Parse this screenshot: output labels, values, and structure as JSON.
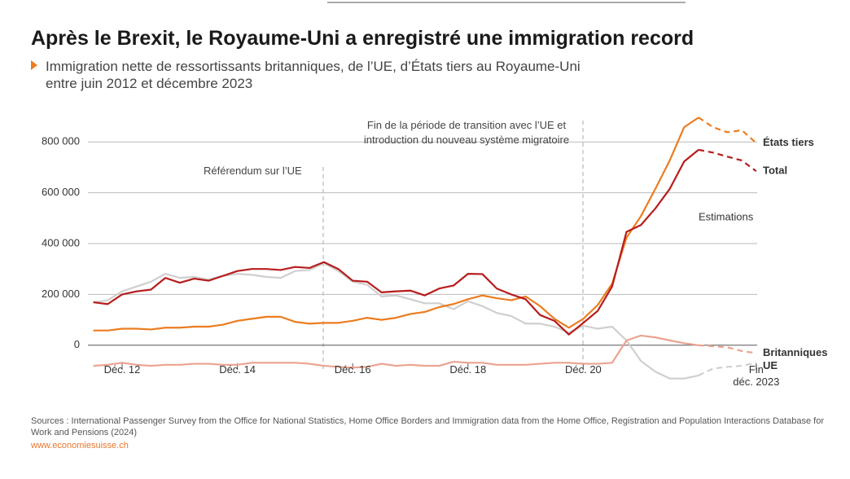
{
  "chart_data": {
    "type": "line",
    "title": "Après le Brexit, le Royaume-Uni a enregistré une immigration record",
    "subtitle": "Immigration nette de ressortissants britanniques, de l’UE, d’États tiers au Royaume-Uni entre juin 2012 et décembre 2023",
    "annotations": [
      "Référendum sur l’UE",
      "Fin de la période de transition avec l’UE et introduction du nouveau système migratoire",
      "Estimations"
    ],
    "source": "Sources : International Passenger Survey from the Office for National Statistics, Home Office Borders and Immigration data from the Home Office, Registration and Population Interactions Database for Work and Pensions (2024)",
    "website": "www.economiesuisse.ch",
    "categories": [
      null,
      null,
      "Déc. 12",
      null,
      null,
      null,
      null,
      null,
      null,
      null,
      "Déc. 14",
      null,
      null,
      null,
      null,
      null,
      null,
      null,
      "Déc. 16",
      null,
      null,
      null,
      null,
      null,
      null,
      null,
      "Déc. 18",
      null,
      null,
      null,
      null,
      null,
      null,
      null,
      "Déc. 20",
      null,
      null,
      null,
      null,
      null,
      null,
      null,
      null,
      null,
      null,
      null,
      "Fin\ndéc. 2023"
    ],
    "dashed_from_index": 42,
    "ylim": [
      -100000,
      900000
    ],
    "yticks": [
      0,
      {
        "value": 200000,
        "label": "200 000"
      },
      {
        "value": 400000,
        "label": "400 000"
      },
      {
        "value": 600000,
        "label": "600 000"
      },
      {
        "value": 800000,
        "label": "800 000"
      }
    ],
    "grid": true,
    "series": [
      {
        "name": "UE",
        "color": "#cfcfcf",
        "values": [
          169000,
          177000,
          212000,
          231000,
          250000,
          281000,
          265000,
          269000,
          258000,
          273000,
          281000,
          277000,
          269000,
          265000,
          292000,
          296000,
          323000,
          292000,
          250000,
          238000,
          192000,
          196000,
          181000,
          165000,
          165000,
          142000,
          173000,
          154000,
          127000,
          115000,
          85000,
          85000,
          73000,
          50000,
          77000,
          65000,
          73000,
          19000,
          -62000,
          -104000,
          -131000,
          -131000,
          -119000,
          -92000,
          -85000,
          -81000,
          -69000
        ]
      },
      {
        "name": "Britanniques",
        "color": "#eba38f",
        "values": [
          -81000,
          -77000,
          -69000,
          -77000,
          -81000,
          -77000,
          -77000,
          -73000,
          -73000,
          -77000,
          -77000,
          -69000,
          -69000,
          -69000,
          -69000,
          -73000,
          -81000,
          -85000,
          -88000,
          -85000,
          -73000,
          -81000,
          -77000,
          -81000,
          -81000,
          -65000,
          -69000,
          -69000,
          -77000,
          -77000,
          -77000,
          -73000,
          -69000,
          -69000,
          -73000,
          -73000,
          -69000,
          19000,
          38000,
          31000,
          19000,
          8000,
          0,
          -4000,
          -8000,
          -23000,
          -31000
        ]
      },
      {
        "name": "États tiers",
        "color": "#ec7c1f",
        "values": [
          58000,
          58000,
          65000,
          65000,
          62000,
          69000,
          69000,
          73000,
          73000,
          81000,
          96000,
          104000,
          112000,
          112000,
          92000,
          85000,
          88000,
          88000,
          96000,
          108000,
          100000,
          108000,
          123000,
          131000,
          150000,
          162000,
          181000,
          196000,
          185000,
          177000,
          192000,
          154000,
          104000,
          69000,
          104000,
          158000,
          242000,
          423000,
          508000,
          615000,
          727000,
          858000,
          896000,
          858000,
          838000,
          846000,
          796000
        ]
      },
      {
        "name": "Total",
        "color": "#b71c1c",
        "values": [
          169000,
          162000,
          200000,
          212000,
          219000,
          265000,
          246000,
          262000,
          254000,
          273000,
          292000,
          300000,
          300000,
          296000,
          308000,
          304000,
          327000,
          300000,
          254000,
          250000,
          208000,
          212000,
          215000,
          196000,
          223000,
          235000,
          281000,
          280000,
          223000,
          200000,
          181000,
          119000,
          96000,
          42000,
          88000,
          135000,
          231000,
          446000,
          473000,
          538000,
          615000,
          723000,
          769000,
          758000,
          742000,
          727000,
          685000
        ]
      }
    ]
  }
}
